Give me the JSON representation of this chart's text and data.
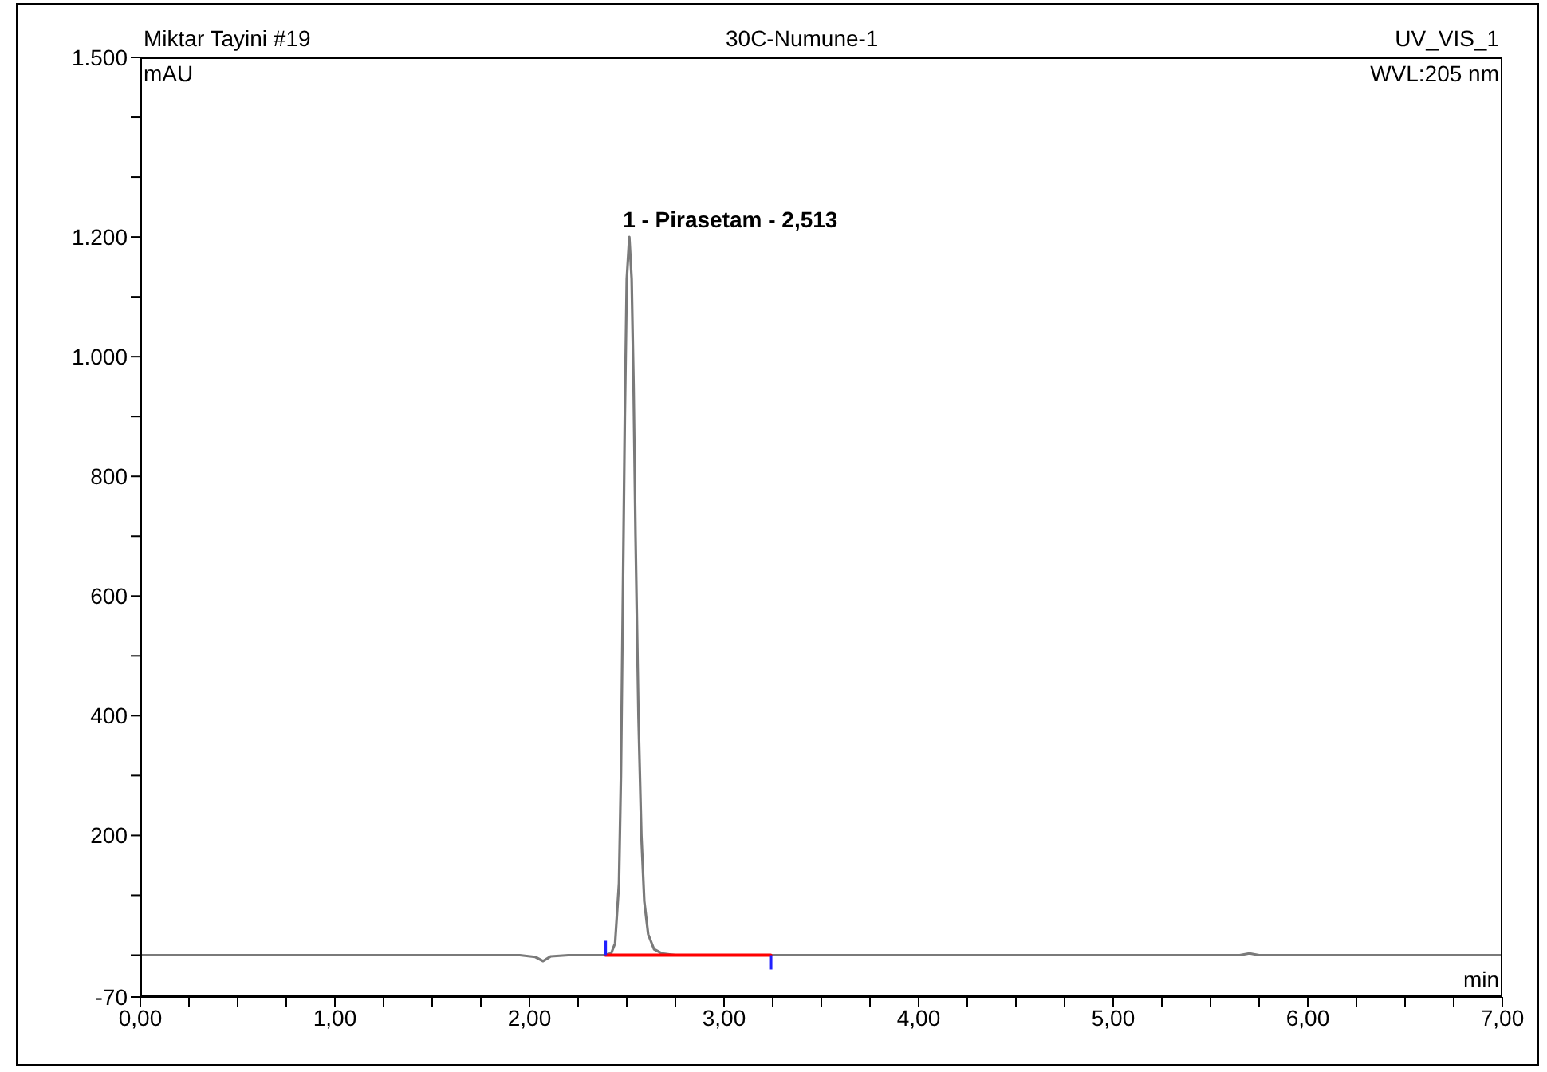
{
  "chart_data": {
    "type": "line",
    "title": "30C-Numune-1",
    "ylabel": "mAU",
    "xlabel": "min",
    "annotations": [
      "Miktar Tayini #19",
      "UV_VIS_1",
      "WVL:205 nm",
      {
        "text": "1 - Pirasetam - 2,513",
        "x": 2.513,
        "y": 1200
      }
    ],
    "marker": "none",
    "series": [
      {
        "color": "#7a7a7a",
        "x": [
          0,
          1.95,
          2.03,
          2.07,
          2.11,
          2.2,
          2.38,
          2.42,
          2.44,
          2.46,
          2.47,
          2.48,
          2.49,
          2.5,
          2.513,
          2.525,
          2.535,
          2.545,
          2.56,
          2.575,
          2.59,
          2.61,
          2.64,
          2.68,
          2.75,
          3.3,
          5.65,
          5.7,
          5.75,
          7.0
        ],
        "values": [
          0,
          0,
          -3,
          -10,
          -2,
          0,
          0,
          3,
          20,
          120,
          300,
          600,
          900,
          1130,
          1200,
          1130,
          950,
          700,
          400,
          200,
          90,
          35,
          10,
          3,
          0,
          0,
          0,
          3,
          0,
          0
        ]
      },
      {
        "color": "#ff0000",
        "x": [
          2.39,
          3.24
        ],
        "values": [
          0,
          0
        ]
      }
    ],
    "xlim": [
      0,
      7
    ],
    "xticks": [
      {
        "value": 0,
        "label": "0,00"
      },
      {
        "value": 0.25,
        "label": null
      },
      {
        "value": 0.5,
        "label": null
      },
      {
        "value": 0.75,
        "label": null
      },
      {
        "value": 1,
        "label": "1,00"
      },
      {
        "value": 1.25,
        "label": null
      },
      {
        "value": 1.5,
        "label": null
      },
      {
        "value": 1.75,
        "label": null
      },
      {
        "value": 2,
        "label": "2,00"
      },
      {
        "value": 2.25,
        "label": null
      },
      {
        "value": 2.5,
        "label": null
      },
      {
        "value": 2.75,
        "label": null
      },
      {
        "value": 3,
        "label": "3,00"
      },
      {
        "value": 3.25,
        "label": null
      },
      {
        "value": 3.5,
        "label": null
      },
      {
        "value": 3.75,
        "label": null
      },
      {
        "value": 4,
        "label": "4,00"
      },
      {
        "value": 4.25,
        "label": null
      },
      {
        "value": 4.5,
        "label": null
      },
      {
        "value": 4.75,
        "label": null
      },
      {
        "value": 5,
        "label": "5,00"
      },
      {
        "value": 5.25,
        "label": null
      },
      {
        "value": 5.5,
        "label": null
      },
      {
        "value": 5.75,
        "label": null
      },
      {
        "value": 6,
        "label": "6,00"
      },
      {
        "value": 6.25,
        "label": null
      },
      {
        "value": 6.5,
        "label": null
      },
      {
        "value": 6.75,
        "label": null
      },
      {
        "value": 7,
        "label": "7,00"
      }
    ],
    "ylim": [
      -70,
      1500
    ],
    "yticks": [
      {
        "value": -70,
        "label": "-70"
      },
      {
        "value": 0,
        "label": null
      },
      {
        "value": 100,
        "label": null
      },
      {
        "value": 200,
        "label": "200"
      },
      {
        "value": 300,
        "label": null
      },
      {
        "value": 400,
        "label": "400"
      },
      {
        "value": 500,
        "label": null
      },
      {
        "value": 600,
        "label": "600"
      },
      {
        "value": 700,
        "label": null
      },
      {
        "value": 800,
        "label": "800"
      },
      {
        "value": 900,
        "label": null
      },
      {
        "value": 1000,
        "label": "1.000"
      },
      {
        "value": 1100,
        "label": null
      },
      {
        "value": 1200,
        "label": "1.200"
      },
      {
        "value": 1300,
        "label": null
      },
      {
        "value": 1400,
        "label": null
      },
      {
        "value": 1500,
        "label": "1.500"
      }
    ]
  }
}
